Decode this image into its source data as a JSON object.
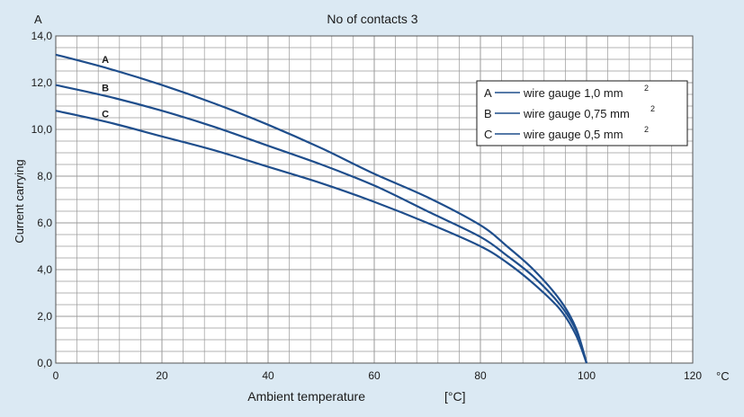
{
  "chart_data": {
    "type": "line",
    "title": "No of contacts 3",
    "ylabel": "Current carrying",
    "yunit": "A",
    "xlabel": "Ambient temperature",
    "xlabel_unit": "[°C]",
    "xunit": "°C",
    "xlim": [
      0,
      120
    ],
    "ylim": [
      0,
      14
    ],
    "grid": true,
    "legend_position": "top-right",
    "x_ticks": [
      0,
      20,
      40,
      60,
      80,
      100,
      120
    ],
    "x_tick_labels": [
      "0",
      "20",
      "40",
      "60",
      "80",
      "100",
      "120"
    ],
    "y_ticks": [
      0,
      2,
      4,
      6,
      8,
      10,
      12,
      14
    ],
    "y_tick_labels": [
      "0,0",
      "2,0",
      "4,0",
      "6,0",
      "8,0",
      "10,0",
      "12,0",
      "14,0"
    ],
    "series": [
      {
        "name": "wire gauge 1,0 mm",
        "letter": "A",
        "legend_letter": "A",
        "legend_label": "wire gauge 1,0 mm",
        "legend_sup": "2",
        "x": [
          0,
          10,
          20,
          30,
          40,
          50,
          60,
          70,
          80,
          85,
          90,
          95,
          98,
          100
        ],
        "y": [
          13.2,
          12.6,
          11.9,
          11.1,
          10.2,
          9.2,
          8.1,
          7.1,
          5.9,
          5.0,
          4.0,
          2.7,
          1.5,
          0.0
        ]
      },
      {
        "name": "wire gauge 0,75 mm",
        "letter": "B",
        "legend_letter": "B",
        "legend_label": "wire gauge 0,75 mm",
        "legend_sup": "2",
        "x": [
          0,
          10,
          20,
          30,
          40,
          50,
          60,
          70,
          80,
          85,
          90,
          95,
          98,
          100
        ],
        "y": [
          11.9,
          11.4,
          10.8,
          10.1,
          9.3,
          8.5,
          7.6,
          6.5,
          5.4,
          4.6,
          3.7,
          2.5,
          1.4,
          0.0
        ]
      },
      {
        "name": "wire gauge 0,5 mm",
        "letter": "C",
        "legend_letter": "C",
        "legend_label": "wire gauge 0,5 mm",
        "legend_sup": "2",
        "x": [
          0,
          10,
          20,
          30,
          40,
          50,
          60,
          70,
          80,
          85,
          90,
          95,
          98,
          100
        ],
        "y": [
          10.8,
          10.3,
          9.7,
          9.1,
          8.4,
          7.7,
          6.9,
          6.0,
          5.0,
          4.3,
          3.4,
          2.3,
          1.2,
          0.0
        ]
      }
    ]
  },
  "colors": {
    "background": "#dbe9f3",
    "plot_background": "#ffffff",
    "grid": "#9a9a9a",
    "curve": "#1f4e8c"
  }
}
